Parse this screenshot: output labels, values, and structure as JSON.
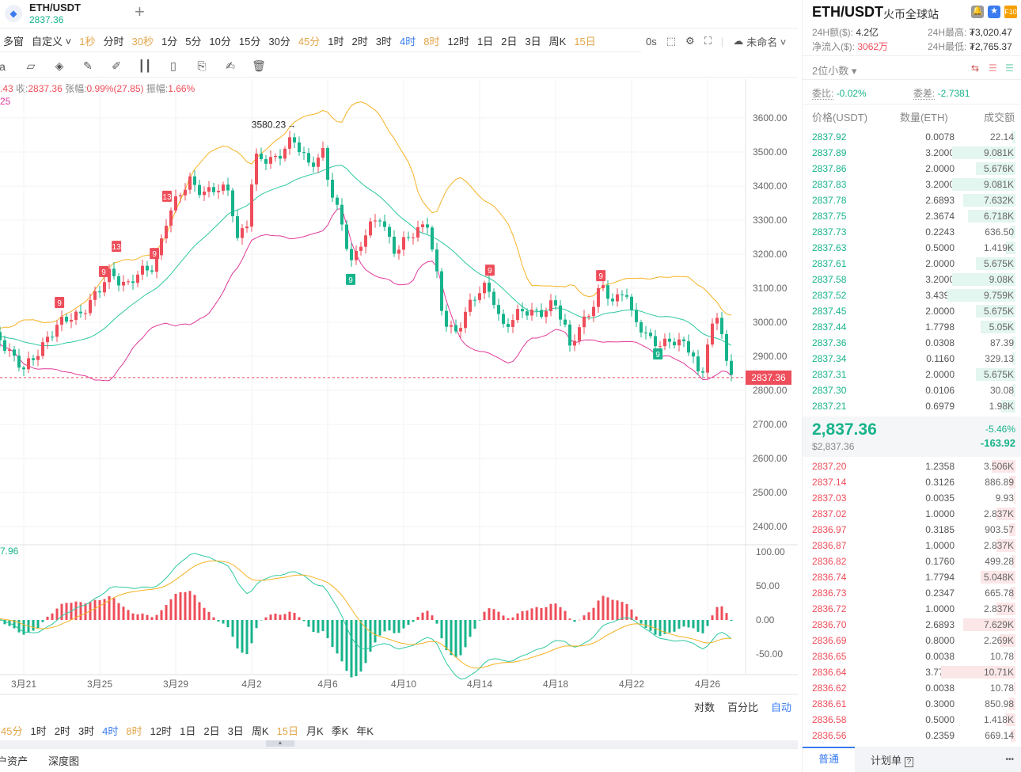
{
  "header": {
    "pair": "ETH/USDT",
    "price": "2837.36",
    "add": "+"
  },
  "timeframes": [
    {
      "l": "多窗",
      "c": ""
    },
    {
      "l": "自定义 ˅",
      "c": ""
    },
    {
      "l": "1秒",
      "c": "orange"
    },
    {
      "l": "分时",
      "c": ""
    },
    {
      "l": "30秒",
      "c": "orange"
    },
    {
      "l": "1分",
      "c": ""
    },
    {
      "l": "5分",
      "c": ""
    },
    {
      "l": "10分",
      "c": ""
    },
    {
      "l": "15分",
      "c": ""
    },
    {
      "l": "30分",
      "c": ""
    },
    {
      "l": "45分",
      "c": "orange"
    },
    {
      "l": "1时",
      "c": ""
    },
    {
      "l": "2时",
      "c": ""
    },
    {
      "l": "3时",
      "c": ""
    },
    {
      "l": "4时",
      "c": "blue"
    },
    {
      "l": "8时",
      "c": "orange"
    },
    {
      "l": "12时",
      "c": ""
    },
    {
      "l": "1日",
      "c": ""
    },
    {
      "l": "2日",
      "c": ""
    },
    {
      "l": "3日",
      "c": ""
    },
    {
      "l": "周K",
      "c": ""
    },
    {
      "l": "15日",
      "c": "orange"
    }
  ],
  "toolbar_right": {
    "seconds": "0s",
    "layout_name": "未命名 ˅"
  },
  "ohlc": {
    "partial_high": ".43",
    "close_label": "收:",
    "close": "2837.36",
    "change_label": "张幅:",
    "change": "0.99%(27.85)",
    "amp_label": "振幅:",
    "amp": "1.66%",
    "boll_partial": "25",
    "macd_partial": "7.96"
  },
  "chart_data": {
    "type": "candlestick",
    "x_unit": "days since 3月21",
    "price_path": [
      [
        -1.25,
        2958
      ],
      [
        0,
        2853
      ],
      [
        1.25,
        2960
      ],
      [
        1.88,
        2990
      ],
      [
        2.92,
        3030
      ],
      [
        3.96,
        3086
      ],
      [
        4.58,
        3150
      ],
      [
        5.42,
        3110
      ],
      [
        6.88,
        3170
      ],
      [
        7.5,
        3300
      ],
      [
        8.75,
        3420
      ],
      [
        9.58,
        3380
      ],
      [
        10.83,
        3390
      ],
      [
        11.25,
        3250
      ],
      [
        11.88,
        3300
      ],
      [
        12.08,
        3470
      ],
      [
        13.33,
        3490
      ],
      [
        14.17,
        3530
      ],
      [
        15,
        3470
      ],
      [
        15.83,
        3500
      ],
      [
        16.04,
        3400
      ],
      [
        16.67,
        3300
      ],
      [
        17.29,
        3180
      ],
      [
        17.92,
        3250
      ],
      [
        18.75,
        3310
      ],
      [
        19.58,
        3210
      ],
      [
        20.42,
        3250
      ],
      [
        21.25,
        3300
      ],
      [
        21.67,
        3170
      ],
      [
        22.08,
        3000
      ],
      [
        22.71,
        2960
      ],
      [
        23.33,
        3050
      ],
      [
        24.17,
        3100
      ],
      [
        24.79,
        3060
      ],
      [
        25.21,
        2990
      ],
      [
        25.83,
        3020
      ],
      [
        27.08,
        3030
      ],
      [
        27.92,
        3060
      ],
      [
        28.54,
        2970
      ],
      [
        28.75,
        2920
      ],
      [
        29.17,
        2990
      ],
      [
        29.79,
        3030
      ],
      [
        30.42,
        3100
      ],
      [
        31.04,
        3060
      ],
      [
        31.67,
        3110
      ],
      [
        32.08,
        3000
      ],
      [
        32.92,
        2950
      ],
      [
        34.17,
        2940
      ],
      [
        35.21,
        2920
      ],
      [
        35.63,
        2820
      ],
      [
        36.04,
        2960
      ],
      [
        36.46,
        3000
      ],
      [
        36.88,
        2960
      ],
      [
        37.08,
        2840
      ],
      [
        37.42,
        2837.36
      ]
    ],
    "high_label": {
      "t": 14.3,
      "price": 3580.23,
      "text": "3580.23"
    },
    "markers": [
      {
        "t": 1.88,
        "price": 3058,
        "text": "9",
        "side": "up"
      },
      {
        "t": 4.21,
        "price": 3149,
        "text": "9",
        "side": "up"
      },
      {
        "t": 4.88,
        "price": 3223,
        "text": "13",
        "side": "up"
      },
      {
        "t": 6.88,
        "price": 3202,
        "text": "9",
        "side": "up"
      },
      {
        "t": 7.54,
        "price": 3370,
        "text": "13",
        "side": "up"
      },
      {
        "t": 17.21,
        "price": 3126,
        "text": "9",
        "side": "down"
      },
      {
        "t": 24.54,
        "price": 3153,
        "text": "9",
        "side": "up"
      },
      {
        "t": 30.38,
        "price": 3137,
        "text": "9",
        "side": "up"
      },
      {
        "t": 33.38,
        "price": 2907,
        "text": "9",
        "side": "down"
      }
    ],
    "price_ticks": [
      "3600.00",
      "3500.00",
      "3400.00",
      "3300.00",
      "3200.00",
      "3100.00",
      "3000.00",
      "2900.00",
      "2800.00",
      "2700.00",
      "2600.00",
      "2500.00",
      "2400.00"
    ],
    "ylim": [
      2400,
      3600
    ],
    "last_price": "2837.36",
    "macd_ticks": [
      "100.00",
      "50.00",
      "0.00",
      "-50.00"
    ],
    "x_ticks": [
      {
        "t": 0,
        "l": "3月21"
      },
      {
        "t": 4,
        "l": "3月25"
      },
      {
        "t": 8,
        "l": "3月29"
      },
      {
        "t": 12,
        "l": "4月2"
      },
      {
        "t": 16,
        "l": "4月6"
      },
      {
        "t": 20,
        "l": "4月10"
      },
      {
        "t": 24,
        "l": "4月14"
      },
      {
        "t": 28,
        "l": "4月18"
      },
      {
        "t": 32,
        "l": "4月22"
      },
      {
        "t": 36,
        "l": "4月26"
      }
    ],
    "colors": {
      "up": "#ee4d5a",
      "down": "#17b38b",
      "upper": "#f5b324",
      "lower": "#e0399b",
      "mid": "#2cc8a0"
    }
  },
  "scale_opts": [
    "对数",
    "百分比",
    "自动"
  ],
  "bottom_tf": [
    {
      "l": "45分",
      "c": "orange"
    },
    {
      "l": "1时",
      "c": ""
    },
    {
      "l": "2时",
      "c": ""
    },
    {
      "l": "3时",
      "c": ""
    },
    {
      "l": "4时",
      "c": "blue"
    },
    {
      "l": "8时",
      "c": "orange"
    },
    {
      "l": "12时",
      "c": ""
    },
    {
      "l": "1日",
      "c": ""
    },
    {
      "l": "2日",
      "c": ""
    },
    {
      "l": "3日",
      "c": ""
    },
    {
      "l": "周K",
      "c": ""
    },
    {
      "l": "15日",
      "c": "orange"
    },
    {
      "l": "月K",
      "c": ""
    },
    {
      "l": "季K",
      "c": ""
    },
    {
      "l": "年K",
      "c": ""
    }
  ],
  "bottom_tabs": [
    "户资产",
    "深度图"
  ],
  "right": {
    "pair": "ETH/USDT",
    "exchange": "火币全球站",
    "f10": "F10",
    "vol_label": "24H额($):",
    "vol": "4.2亿",
    "high_label": "24H最高:",
    "high": "₮3,020.47",
    "flow_label": "净流入($):",
    "flow": "3062万",
    "low_label": "24H最低:",
    "low": "₮2,765.37",
    "decimals": "2位小数",
    "wb_label": "委比:",
    "wb": "-0.02%",
    "wc_label": "委差:",
    "wc": "-2.7381",
    "cols": [
      "价格(USDT)",
      "数量(ETH)",
      "成交额"
    ],
    "asks": [
      [
        "2837.92",
        "0.0078",
        "22.14",
        0.02
      ],
      [
        "2837.89",
        "3.2000",
        "9.081K",
        0.4
      ],
      [
        "2837.86",
        "2.0000",
        "5.676K",
        0.25
      ],
      [
        "2837.83",
        "3.2000",
        "9.081K",
        0.4
      ],
      [
        "2837.78",
        "2.6893",
        "7.632K",
        0.33
      ],
      [
        "2837.75",
        "2.3674",
        "6.718K",
        0.3
      ],
      [
        "2837.73",
        "0.2243",
        "636.50",
        0.03
      ],
      [
        "2837.63",
        "0.5000",
        "1.419K",
        0.06
      ],
      [
        "2837.61",
        "2.0000",
        "5.675K",
        0.25
      ],
      [
        "2837.58",
        "3.2000",
        "9.08K",
        0.4
      ],
      [
        "2837.52",
        "3.4392",
        "9.759K",
        0.43
      ],
      [
        "2837.45",
        "2.0000",
        "5.675K",
        0.25
      ],
      [
        "2837.44",
        "1.7798",
        "5.05K",
        0.22
      ],
      [
        "2837.36",
        "0.0308",
        "87.39",
        0.02
      ],
      [
        "2837.34",
        "0.1160",
        "329.13",
        0.02
      ],
      [
        "2837.31",
        "2.0000",
        "5.675K",
        0.25
      ],
      [
        "2837.30",
        "0.0106",
        "30.08",
        0.02
      ],
      [
        "2837.21",
        "0.6979",
        "1.98K",
        0.09
      ]
    ],
    "last": "2,837.36",
    "last_usd": "$2,837.36",
    "pct": "-5.46%",
    "chg": "-163.92",
    "bids": [
      [
        "2837.20",
        "1.2358",
        "3.506K",
        0.15
      ],
      [
        "2837.14",
        "0.3126",
        "886.89",
        0.04
      ],
      [
        "2837.03",
        "0.0035",
        "9.93",
        0.01
      ],
      [
        "2837.02",
        "1.0000",
        "2.837K",
        0.12
      ],
      [
        "2836.97",
        "0.3185",
        "903.57",
        0.04
      ],
      [
        "2836.87",
        "1.0000",
        "2.837K",
        0.12
      ],
      [
        "2836.82",
        "0.1760",
        "499.28",
        0.02
      ],
      [
        "2836.74",
        "1.7794",
        "5.048K",
        0.22
      ],
      [
        "2836.73",
        "0.2347",
        "665.78",
        0.03
      ],
      [
        "2836.72",
        "1.0000",
        "2.837K",
        0.12
      ],
      [
        "2836.70",
        "2.6893",
        "7.629K",
        0.33
      ],
      [
        "2836.69",
        "0.8000",
        "2.269K",
        0.1
      ],
      [
        "2836.65",
        "0.0038",
        "10.78",
        0.01
      ],
      [
        "2836.64",
        "3.7756",
        "10.71K",
        0.47
      ],
      [
        "2836.62",
        "0.0038",
        "10.78",
        0.01
      ],
      [
        "2836.61",
        "0.3000",
        "850.98",
        0.04
      ],
      [
        "2836.58",
        "0.5000",
        "1.418K",
        0.06
      ],
      [
        "2836.56",
        "0.2359",
        "669.14",
        0.03
      ]
    ],
    "tabs": [
      "普通",
      "计划单"
    ],
    "more": "•••"
  }
}
